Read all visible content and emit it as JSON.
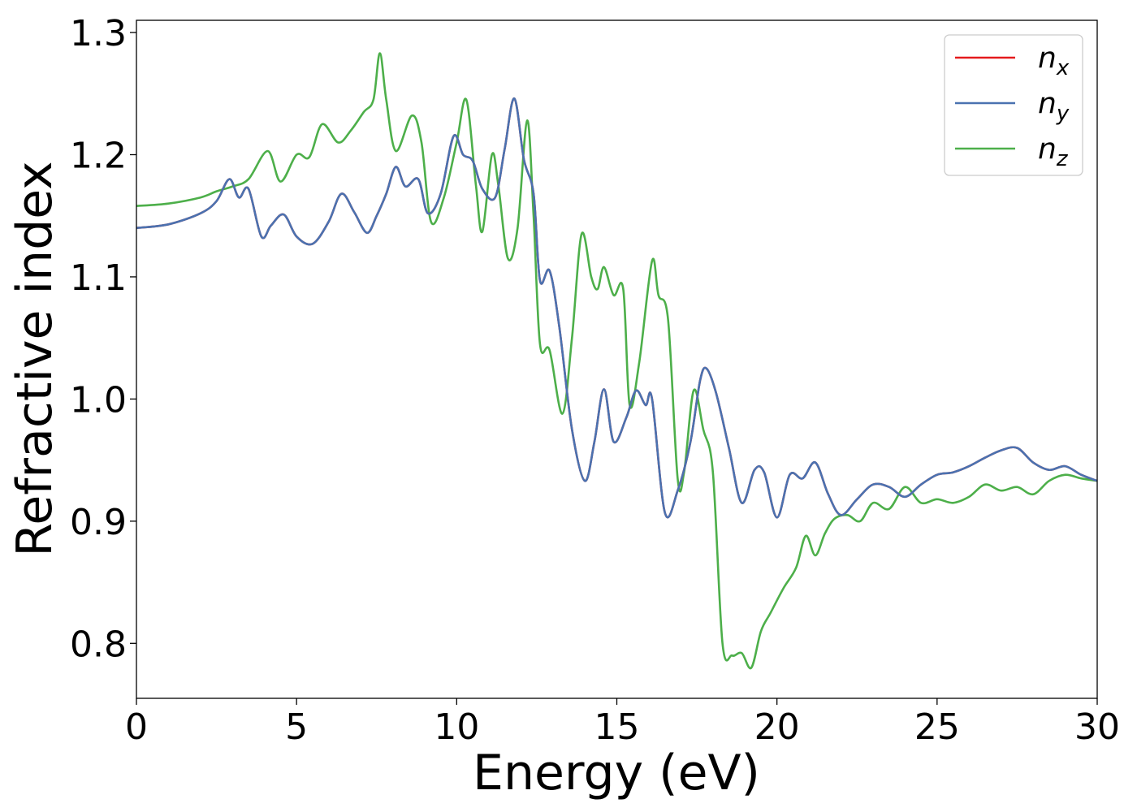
{
  "chart_data": {
    "type": "line",
    "xlabel": "Energy (eV)",
    "ylabel": "Refractive index",
    "xlim": [
      0,
      30
    ],
    "ylim": [
      0.755,
      1.31
    ],
    "xticks": [
      0,
      5,
      10,
      15,
      20,
      25,
      30
    ],
    "xtick_labels": [
      "0",
      "5",
      "10",
      "15",
      "20",
      "25",
      "30"
    ],
    "yticks": [
      0.8,
      0.9,
      1.0,
      1.1,
      1.2,
      1.3
    ],
    "ytick_labels": [
      "0.8",
      "0.9",
      "1.0",
      "1.1",
      "1.2",
      "1.3"
    ],
    "grid": false,
    "legend_position": "top-right",
    "series": [
      {
        "name": "n_x",
        "legend_base": "n",
        "legend_sub": "x",
        "color": "#e41a1c",
        "x": [
          0,
          1,
          2,
          2.5,
          2.9,
          3.2,
          3.5,
          3.9,
          4.2,
          4.6,
          5.0,
          5.5,
          6.0,
          6.4,
          6.8,
          7.2,
          7.5,
          7.8,
          8.1,
          8.4,
          8.8,
          9.1,
          9.5,
          9.9,
          10.2,
          10.5,
          10.8,
          11.2,
          11.5,
          11.8,
          12.1,
          12.4,
          12.6,
          12.9,
          13.2,
          13.6,
          14.0,
          14.3,
          14.6,
          14.9,
          15.3,
          15.6,
          15.9,
          16.1,
          16.5,
          16.9,
          17.3,
          17.6,
          17.8,
          18.1,
          18.5,
          18.9,
          19.3,
          19.6,
          20.0,
          20.4,
          20.8,
          21.2,
          21.6,
          22.0,
          22.5,
          23.0,
          23.5,
          24.0,
          24.5,
          25.0,
          25.5,
          26.0,
          26.5,
          27.0,
          27.5,
          28.0,
          28.5,
          29.0,
          29.5,
          30.0
        ],
        "y": [
          1.14,
          1.143,
          1.152,
          1.162,
          1.18,
          1.165,
          1.172,
          1.133,
          1.142,
          1.151,
          1.133,
          1.127,
          1.145,
          1.168,
          1.153,
          1.136,
          1.15,
          1.168,
          1.19,
          1.174,
          1.18,
          1.152,
          1.168,
          1.215,
          1.2,
          1.195,
          1.172,
          1.165,
          1.205,
          1.246,
          1.196,
          1.168,
          1.097,
          1.105,
          1.06,
          0.975,
          0.933,
          0.965,
          1.008,
          0.965,
          0.985,
          1.007,
          0.995,
          1.0,
          0.907,
          0.925,
          0.965,
          1.015,
          1.025,
          1.005,
          0.96,
          0.915,
          0.942,
          0.94,
          0.903,
          0.938,
          0.935,
          0.948,
          0.922,
          0.905,
          0.918,
          0.93,
          0.928,
          0.92,
          0.93,
          0.938,
          0.94,
          0.945,
          0.952,
          0.958,
          0.96,
          0.948,
          0.942,
          0.945,
          0.938,
          0.933
        ]
      },
      {
        "name": "n_y",
        "legend_base": "n",
        "legend_sub": "y",
        "color": "#4a72b0",
        "x": [
          0,
          1,
          2,
          2.5,
          2.9,
          3.2,
          3.5,
          3.9,
          4.2,
          4.6,
          5.0,
          5.5,
          6.0,
          6.4,
          6.8,
          7.2,
          7.5,
          7.8,
          8.1,
          8.4,
          8.8,
          9.1,
          9.5,
          9.9,
          10.2,
          10.5,
          10.8,
          11.2,
          11.5,
          11.8,
          12.1,
          12.4,
          12.6,
          12.9,
          13.2,
          13.6,
          14.0,
          14.3,
          14.6,
          14.9,
          15.3,
          15.6,
          15.9,
          16.1,
          16.5,
          16.9,
          17.3,
          17.6,
          17.8,
          18.1,
          18.5,
          18.9,
          19.3,
          19.6,
          20.0,
          20.4,
          20.8,
          21.2,
          21.6,
          22.0,
          22.5,
          23.0,
          23.5,
          24.0,
          24.5,
          25.0,
          25.5,
          26.0,
          26.5,
          27.0,
          27.5,
          28.0,
          28.5,
          29.0,
          29.5,
          30.0
        ],
        "y": [
          1.14,
          1.143,
          1.152,
          1.162,
          1.18,
          1.165,
          1.172,
          1.133,
          1.142,
          1.151,
          1.133,
          1.127,
          1.145,
          1.168,
          1.153,
          1.136,
          1.15,
          1.168,
          1.19,
          1.174,
          1.18,
          1.152,
          1.168,
          1.215,
          1.2,
          1.195,
          1.172,
          1.165,
          1.205,
          1.246,
          1.196,
          1.168,
          1.097,
          1.105,
          1.06,
          0.975,
          0.933,
          0.965,
          1.008,
          0.965,
          0.985,
          1.007,
          0.995,
          1.0,
          0.907,
          0.925,
          0.965,
          1.015,
          1.025,
          1.005,
          0.96,
          0.915,
          0.942,
          0.94,
          0.903,
          0.938,
          0.935,
          0.948,
          0.922,
          0.905,
          0.918,
          0.93,
          0.928,
          0.92,
          0.93,
          0.938,
          0.94,
          0.945,
          0.952,
          0.958,
          0.96,
          0.948,
          0.942,
          0.945,
          0.938,
          0.933
        ]
      },
      {
        "name": "n_z",
        "legend_base": "n",
        "legend_sub": "z",
        "color": "#4daf4a",
        "x": [
          0,
          1,
          2,
          2.5,
          3.0,
          3.5,
          4.1,
          4.5,
          5.0,
          5.4,
          5.8,
          6.3,
          6.7,
          7.1,
          7.4,
          7.6,
          7.8,
          8.1,
          8.6,
          8.9,
          9.2,
          9.6,
          10.0,
          10.3,
          10.6,
          10.8,
          11.1,
          11.3,
          11.6,
          11.9,
          12.2,
          12.4,
          12.6,
          12.9,
          13.3,
          13.6,
          13.9,
          14.2,
          14.4,
          14.6,
          14.9,
          15.2,
          15.4,
          15.7,
          16.1,
          16.3,
          16.6,
          16.9,
          17.1,
          17.4,
          17.7,
          18.0,
          18.3,
          18.6,
          18.9,
          19.2,
          19.5,
          19.8,
          20.2,
          20.6,
          20.9,
          21.2,
          21.5,
          21.8,
          22.2,
          22.6,
          23.0,
          23.5,
          24.0,
          24.5,
          25.0,
          25.5,
          26.0,
          26.5,
          27.0,
          27.5,
          28.0,
          28.5,
          29.0,
          29.5,
          30.0
        ],
        "y": [
          1.158,
          1.16,
          1.165,
          1.17,
          1.174,
          1.18,
          1.203,
          1.178,
          1.2,
          1.198,
          1.225,
          1.21,
          1.22,
          1.235,
          1.245,
          1.283,
          1.245,
          1.203,
          1.232,
          1.21,
          1.145,
          1.165,
          1.21,
          1.245,
          1.175,
          1.137,
          1.2,
          1.175,
          1.115,
          1.14,
          1.228,
          1.15,
          1.045,
          1.04,
          0.988,
          1.05,
          1.135,
          1.1,
          1.09,
          1.108,
          1.085,
          1.09,
          0.995,
          1.03,
          1.113,
          1.085,
          1.065,
          0.935,
          0.94,
          1.007,
          0.975,
          0.94,
          0.8,
          0.79,
          0.792,
          0.78,
          0.81,
          0.825,
          0.845,
          0.862,
          0.888,
          0.872,
          0.89,
          0.902,
          0.905,
          0.9,
          0.915,
          0.91,
          0.928,
          0.915,
          0.918,
          0.915,
          0.92,
          0.93,
          0.925,
          0.928,
          0.922,
          0.933,
          0.938,
          0.935,
          0.933
        ]
      }
    ]
  }
}
